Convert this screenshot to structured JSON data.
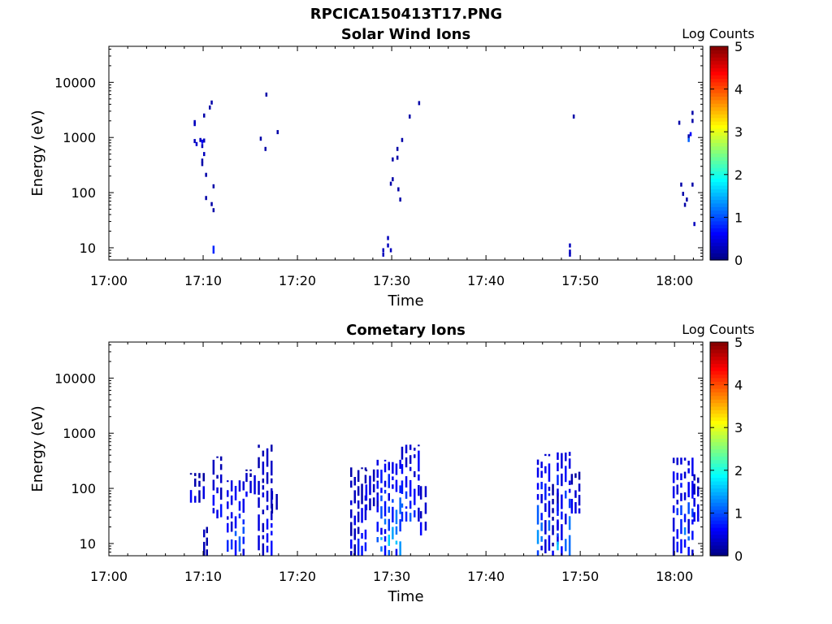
{
  "figure_title": "RPCICA150413T17.PNG",
  "chart_data": [
    {
      "type": "heatmap",
      "title": "Solar Wind Ions",
      "xlabel": "Time",
      "ylabel": "Energy (eV)",
      "x_ticks": [
        "17:00",
        "17:10",
        "17:20",
        "17:30",
        "17:40",
        "17:50",
        "18:00"
      ],
      "x_range_minutes": [
        0,
        63
      ],
      "y_ticks": [
        10,
        100,
        1000,
        10000
      ],
      "y_tick_labels": [
        "10",
        "100",
        "1000",
        "10000"
      ],
      "y_scale": "log",
      "y_range": [
        6,
        45000
      ],
      "colorbar": {
        "label": "Log Counts",
        "range": [
          0,
          5
        ],
        "ticks": [
          "0",
          "1",
          "2",
          "3",
          "4",
          "5"
        ],
        "colormap": "jet"
      },
      "points": [
        {
          "t": 9.0,
          "e": 1900,
          "v": 0.3
        },
        {
          "t": 9.0,
          "e": 1750,
          "v": 0.3
        },
        {
          "t": 9.0,
          "e": 860,
          "v": 0.3
        },
        {
          "t": 9.2,
          "e": 760,
          "v": 0.4
        },
        {
          "t": 9.6,
          "e": 900,
          "v": 0.3
        },
        {
          "t": 9.8,
          "e": 840,
          "v": 0.6
        },
        {
          "t": 9.8,
          "e": 700,
          "v": 0.3
        },
        {
          "t": 10.0,
          "e": 880,
          "v": 0.3
        },
        {
          "t": 10.0,
          "e": 500,
          "v": 0.3
        },
        {
          "t": 9.8,
          "e": 380,
          "v": 0.2
        },
        {
          "t": 9.8,
          "e": 330,
          "v": 0.2
        },
        {
          "t": 10.2,
          "e": 210,
          "v": 0.2
        },
        {
          "t": 10.0,
          "e": 2500,
          "v": 0.2
        },
        {
          "t": 10.6,
          "e": 3500,
          "v": 0.2
        },
        {
          "t": 10.8,
          "e": 4300,
          "v": 0.2
        },
        {
          "t": 10.2,
          "e": 80,
          "v": 0.2
        },
        {
          "t": 10.8,
          "e": 62,
          "v": 0.2
        },
        {
          "t": 11.0,
          "e": 48,
          "v": 0.2
        },
        {
          "t": 11.0,
          "e": 130,
          "v": 0.2
        },
        {
          "t": 11.0,
          "e": 10,
          "v": 0.8
        },
        {
          "t": 11.0,
          "e": 8.5,
          "v": 0.8
        },
        {
          "t": 16.0,
          "e": 950,
          "v": 0.2
        },
        {
          "t": 16.5,
          "e": 620,
          "v": 0.2
        },
        {
          "t": 16.6,
          "e": 6000,
          "v": 0.2
        },
        {
          "t": 17.8,
          "e": 1250,
          "v": 0.2
        },
        {
          "t": 29.0,
          "e": 9,
          "v": 0.3
        },
        {
          "t": 29.5,
          "e": 11,
          "v": 0.3
        },
        {
          "t": 29.5,
          "e": 15,
          "v": 0.3
        },
        {
          "t": 29.0,
          "e": 7.5,
          "v": 0.3
        },
        {
          "t": 29.8,
          "e": 9,
          "v": 0.3
        },
        {
          "t": 29.8,
          "e": 145,
          "v": 0.2
        },
        {
          "t": 30.0,
          "e": 175,
          "v": 0.2
        },
        {
          "t": 30.0,
          "e": 400,
          "v": 0.2
        },
        {
          "t": 30.5,
          "e": 430,
          "v": 0.2
        },
        {
          "t": 30.6,
          "e": 115,
          "v": 0.2
        },
        {
          "t": 30.8,
          "e": 75,
          "v": 0.2
        },
        {
          "t": 31.0,
          "e": 900,
          "v": 0.2
        },
        {
          "t": 30.5,
          "e": 620,
          "v": 0.2
        },
        {
          "t": 31.8,
          "e": 2400,
          "v": 0.2
        },
        {
          "t": 32.8,
          "e": 4200,
          "v": 0.2
        },
        {
          "t": 48.8,
          "e": 11,
          "v": 0.3
        },
        {
          "t": 48.8,
          "e": 8.5,
          "v": 0.3
        },
        {
          "t": 48.8,
          "e": 7.5,
          "v": 0.3
        },
        {
          "t": 49.2,
          "e": 2400,
          "v": 0.2
        },
        {
          "t": 60.4,
          "e": 1850,
          "v": 0.2
        },
        {
          "t": 60.6,
          "e": 140,
          "v": 0.2
        },
        {
          "t": 60.8,
          "e": 95,
          "v": 0.2
        },
        {
          "t": 61.0,
          "e": 60,
          "v": 0.2
        },
        {
          "t": 61.2,
          "e": 75,
          "v": 0.2
        },
        {
          "t": 61.4,
          "e": 1050,
          "v": 0.2
        },
        {
          "t": 61.4,
          "e": 900,
          "v": 1.1
        },
        {
          "t": 61.6,
          "e": 1150,
          "v": 0.6
        },
        {
          "t": 61.8,
          "e": 2800,
          "v": 0.2
        },
        {
          "t": 61.8,
          "e": 2000,
          "v": 0.2
        },
        {
          "t": 61.8,
          "e": 140,
          "v": 0.2
        },
        {
          "t": 62.0,
          "e": 27,
          "v": 0.3
        }
      ]
    },
    {
      "type": "heatmap",
      "title": "Cometary Ions",
      "xlabel": "Time",
      "ylabel": "Energy (eV)",
      "x_ticks": [
        "17:00",
        "17:10",
        "17:20",
        "17:30",
        "17:40",
        "17:50",
        "18:00"
      ],
      "x_range_minutes": [
        0,
        63
      ],
      "y_ticks": [
        10,
        100,
        1000,
        10000
      ],
      "y_tick_labels": [
        "10",
        "100",
        "1000",
        "10000"
      ],
      "y_scale": "log",
      "y_range": [
        6,
        45000
      ],
      "colorbar": {
        "label": "Log Counts",
        "range": [
          0,
          5
        ],
        "ticks": [
          "0",
          "1",
          "2",
          "3",
          "4",
          "5"
        ],
        "colormap": "jet"
      },
      "bursts": [
        {
          "t0": 8.6,
          "t1": 10.4,
          "emin": 55,
          "emax": 190,
          "vmax": 0.6
        },
        {
          "t0": 10.0,
          "t1": 10.6,
          "emin": 6,
          "emax": 20,
          "vmax": 0.6
        },
        {
          "t0": 11.0,
          "t1": 12.2,
          "emin": 25,
          "emax": 380,
          "vmax": 0.8
        },
        {
          "t0": 12.5,
          "t1": 14.6,
          "emin": 6,
          "emax": 140,
          "vmax": 1.4
        },
        {
          "t0": 14.5,
          "t1": 15.8,
          "emin": 70,
          "emax": 220,
          "vmax": 0.6
        },
        {
          "t0": 15.8,
          "t1": 17.6,
          "emin": 6,
          "emax": 620,
          "vmax": 0.9
        },
        {
          "t0": 17.2,
          "t1": 18.2,
          "emin": 35,
          "emax": 90,
          "vmax": 0.7
        },
        {
          "t0": 25.6,
          "t1": 27.5,
          "emin": 6,
          "emax": 240,
          "vmax": 0.8
        },
        {
          "t0": 27.2,
          "t1": 28.8,
          "emin": 40,
          "emax": 220,
          "vmax": 0.8
        },
        {
          "t0": 28.4,
          "t1": 31.2,
          "emin": 6,
          "emax": 330,
          "vmax": 1.9
        },
        {
          "t0": 31.0,
          "t1": 33.2,
          "emin": 25,
          "emax": 620,
          "vmax": 1.3
        },
        {
          "t0": 33.0,
          "t1": 34.0,
          "emin": 14,
          "emax": 110,
          "vmax": 1.0
        },
        {
          "t0": 45.4,
          "t1": 47.0,
          "emin": 6,
          "emax": 420,
          "vmax": 1.6
        },
        {
          "t0": 47.0,
          "t1": 48.0,
          "emin": 6,
          "emax": 120,
          "vmax": 0.6
        },
        {
          "t0": 47.5,
          "t1": 49.2,
          "emin": 6,
          "emax": 460,
          "vmax": 1.7
        },
        {
          "t0": 49.0,
          "t1": 50.2,
          "emin": 35,
          "emax": 200,
          "vmax": 0.6
        },
        {
          "t0": 59.8,
          "t1": 62.2,
          "emin": 6,
          "emax": 360,
          "vmax": 1.5
        },
        {
          "t0": 62.0,
          "t1": 62.8,
          "emin": 25,
          "emax": 180,
          "vmax": 0.8
        }
      ]
    }
  ]
}
